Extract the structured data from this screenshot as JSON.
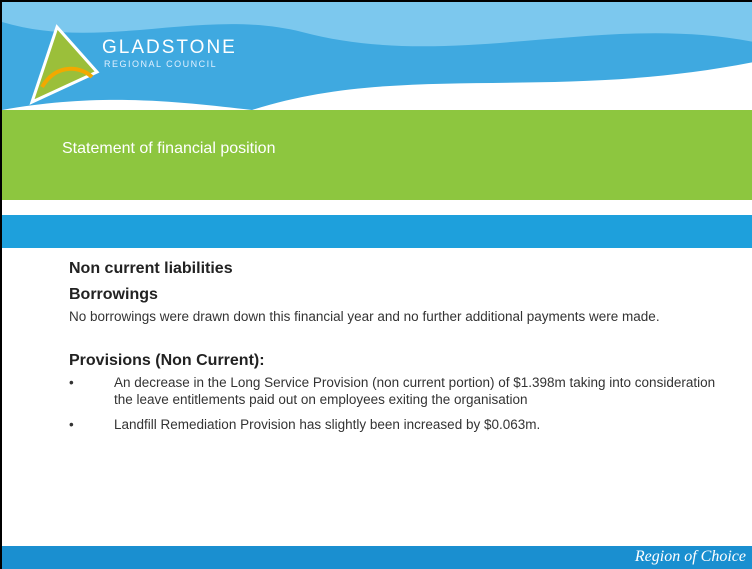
{
  "header": {
    "org_name": "GLADSTONE",
    "org_subtitle": "REGIONAL COUNCIL"
  },
  "banner": {
    "title": "Statement of financial position"
  },
  "content": {
    "heading": "Non current liabilities",
    "borrowings": {
      "title": "Borrowings",
      "text": "No borrowings were drawn down this financial year and no further additional payments were made."
    },
    "provisions": {
      "title": "Provisions (Non Current):",
      "bullets": [
        "An decrease in the Long Service Provision (non current portion)  of $1.398m taking into consideration the leave entitlements paid out on employees exiting the organisation",
        "Landfill Remediation Provision has slightly been increased by $0.063m."
      ]
    }
  },
  "footer": {
    "tagline": "Region of Choice"
  }
}
